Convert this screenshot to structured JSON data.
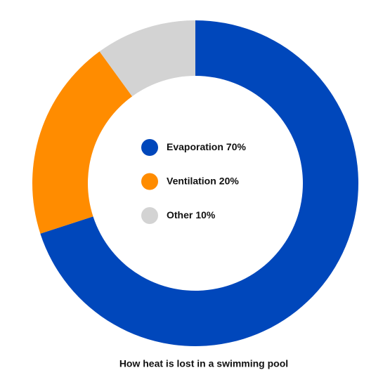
{
  "chart_data": {
    "type": "donut",
    "title": "How heat is lost in a swimming pool",
    "categories": [
      "Evaporation",
      "Ventilation",
      "Other"
    ],
    "values": [
      70,
      20,
      10
    ],
    "value_labels": [
      "70%",
      "20%",
      "10%"
    ],
    "colors": [
      "#0047bb",
      "#ff8c00",
      "#d3d3d3"
    ],
    "legend": "center"
  }
}
